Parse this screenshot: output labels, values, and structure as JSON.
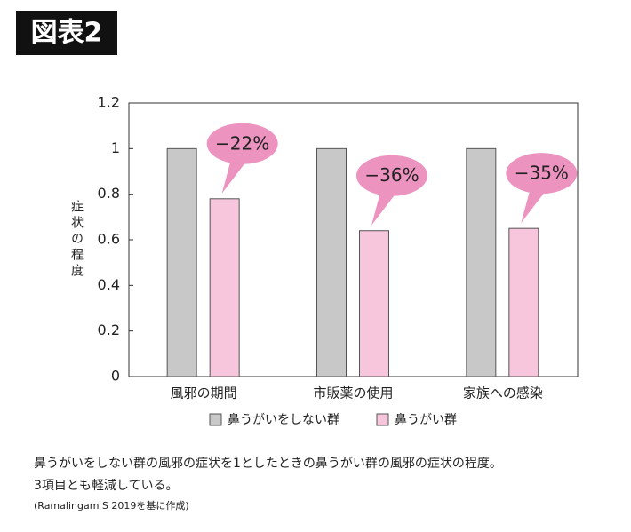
{
  "badge": "図表2",
  "chart_data": {
    "type": "bar",
    "y_label": "症状の程度",
    "categories": [
      "風邪の期間",
      "市販薬の使用",
      "家族への感染"
    ],
    "series": [
      {
        "name": "鼻うがいをしない群",
        "color": "#c8c8c8",
        "values": [
          1,
          1,
          1
        ]
      },
      {
        "name": "鼻うがい群",
        "color": "#f7c6dc",
        "values": [
          0.78,
          0.64,
          0.65
        ]
      }
    ],
    "annotations": [
      "−22%",
      "−36%",
      "−35%"
    ],
    "annotation_color": "#ec93c0",
    "ylim": [
      0,
      1.2
    ],
    "yticks": [
      0,
      0.2,
      0.4,
      0.6,
      0.8,
      1,
      1.2
    ]
  },
  "caption": [
    "鼻うがいをしない群の風邪の症状を1としたときの鼻うがい群の風邪の症状の程度。",
    "3項目とも軽減している。",
    "(Ramalingam S 2019を基に作成)"
  ]
}
